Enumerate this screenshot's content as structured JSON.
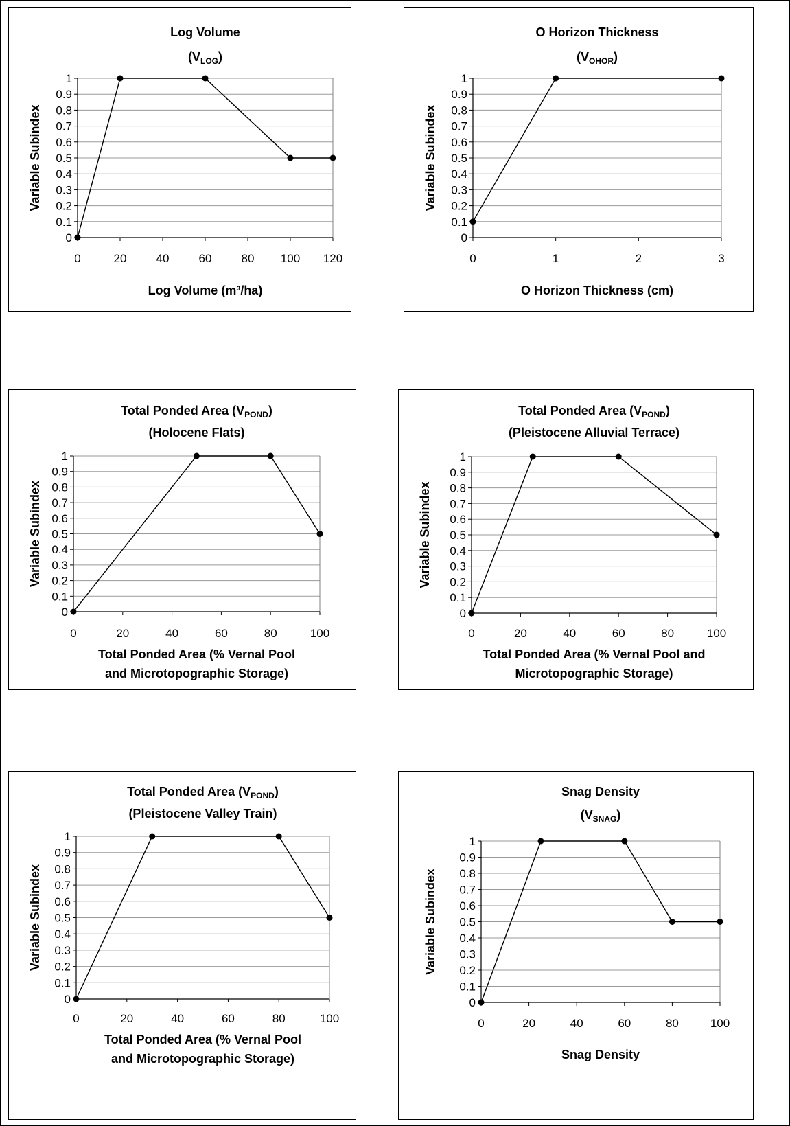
{
  "chart_data": [
    {
      "type": "line",
      "title": "Log Volume",
      "subtitle_main": "V",
      "subtitle_sub": "LOG",
      "xlabel_lines": [
        "Log Volume (m³/ha)"
      ],
      "ylabel": "Variable Subindex",
      "x": [
        0,
        20,
        60,
        100,
        120
      ],
      "y": [
        0,
        1,
        1,
        0.5,
        0.5
      ],
      "xlim": [
        0,
        120
      ],
      "ylim": [
        0,
        1
      ],
      "xticks": [
        "0",
        "20",
        "40",
        "60",
        "80",
        "100",
        "120"
      ],
      "yticks": [
        "0",
        "0.1",
        "0.2",
        "0.3",
        "0.4",
        "0.5",
        "0.6",
        "0.7",
        "0.8",
        "0.9",
        "1"
      ],
      "grid": true
    },
    {
      "type": "line",
      "title": "O Horizon Thickness",
      "subtitle_main": "V",
      "subtitle_sub": "OHOR",
      "xlabel_lines": [
        "O Horizon Thickness (cm)"
      ],
      "ylabel": "Variable Subindex",
      "x": [
        0,
        1,
        3
      ],
      "y": [
        0.1,
        1,
        1
      ],
      "xlim": [
        0,
        3
      ],
      "ylim": [
        0,
        1
      ],
      "xticks": [
        "0",
        "1",
        "2",
        "3"
      ],
      "yticks": [
        "0",
        "0.1",
        "0.2",
        "0.3",
        "0.4",
        "0.5",
        "0.6",
        "0.7",
        "0.8",
        "0.9",
        "1"
      ],
      "grid": true
    },
    {
      "type": "line",
      "title_main": "Total Ponded Area  (V",
      "title_sub": "POND",
      "title_end": ")",
      "subtitle": "(Holocene Flats)",
      "xlabel_lines": [
        "Total Ponded Area (% Vernal Pool",
        "and Microtopographic Storage)"
      ],
      "ylabel": "Variable Subindex",
      "x": [
        0,
        50,
        80,
        100
      ],
      "y": [
        0,
        1,
        1,
        0.5
      ],
      "xlim": [
        0,
        100
      ],
      "ylim": [
        0,
        1
      ],
      "xticks": [
        "0",
        "20",
        "40",
        "60",
        "80",
        "100"
      ],
      "yticks": [
        "0",
        "0.1",
        "0.2",
        "0.3",
        "0.4",
        "0.5",
        "0.6",
        "0.7",
        "0.8",
        "0.9",
        "1"
      ],
      "grid": true
    },
    {
      "type": "line",
      "title_main": "Total Ponded Area  (V",
      "title_sub": "POND",
      "title_end": ")",
      "subtitle": "(Pleistocene Alluvial Terrace)",
      "xlabel_lines": [
        "Total Ponded Area (% Vernal Pool and",
        "Microtopographic Storage)"
      ],
      "ylabel": "Variable Subindex",
      "x": [
        0,
        25,
        60,
        100
      ],
      "y": [
        0,
        1,
        1,
        0.5
      ],
      "xlim": [
        0,
        100
      ],
      "ylim": [
        0,
        1
      ],
      "xticks": [
        "0",
        "20",
        "40",
        "60",
        "80",
        "100"
      ],
      "yticks": [
        "0",
        "0.1",
        "0.2",
        "0.3",
        "0.4",
        "0.5",
        "0.6",
        "0.7",
        "0.8",
        "0.9",
        "1"
      ],
      "grid": true
    },
    {
      "type": "line",
      "title_main": "Total Ponded Area  (V",
      "title_sub": "POND",
      "title_end": ")",
      "subtitle": "(Pleistocene Valley Train)",
      "xlabel_lines": [
        "Total Ponded Area (% Vernal Pool",
        "and Microtopographic Storage)"
      ],
      "ylabel": "Variable Subindex",
      "x": [
        0,
        30,
        80,
        100
      ],
      "y": [
        0,
        1,
        1,
        0.5
      ],
      "xlim": [
        0,
        100
      ],
      "ylim": [
        0,
        1
      ],
      "xticks": [
        "0",
        "20",
        "40",
        "60",
        "80",
        "100"
      ],
      "yticks": [
        "0",
        "0.1",
        "0.2",
        "0.3",
        "0.4",
        "0.5",
        "0.6",
        "0.7",
        "0.8",
        "0.9",
        "1"
      ],
      "grid": true
    },
    {
      "type": "line",
      "title": "Snag Density",
      "subtitle_main": "V",
      "subtitle_sub": "SNAG",
      "xlabel_lines": [
        "Snag Density"
      ],
      "ylabel": "Variable Subindex",
      "x": [
        0,
        25,
        60,
        80,
        100
      ],
      "y": [
        0,
        1,
        1,
        0.5,
        0.5
      ],
      "xlim": [
        0,
        100
      ],
      "ylim": [
        0,
        1
      ],
      "xticks": [
        "0",
        "20",
        "40",
        "60",
        "80",
        "100"
      ],
      "yticks": [
        "0",
        "0.1",
        "0.2",
        "0.3",
        "0.4",
        "0.5",
        "0.6",
        "0.7",
        "0.8",
        "0.9",
        "1"
      ],
      "grid": true
    }
  ],
  "style": {
    "line_color": "#000000",
    "grid_color": "#9a9a9a",
    "plot_border_color": "#808080",
    "marker_color": "#000000"
  }
}
